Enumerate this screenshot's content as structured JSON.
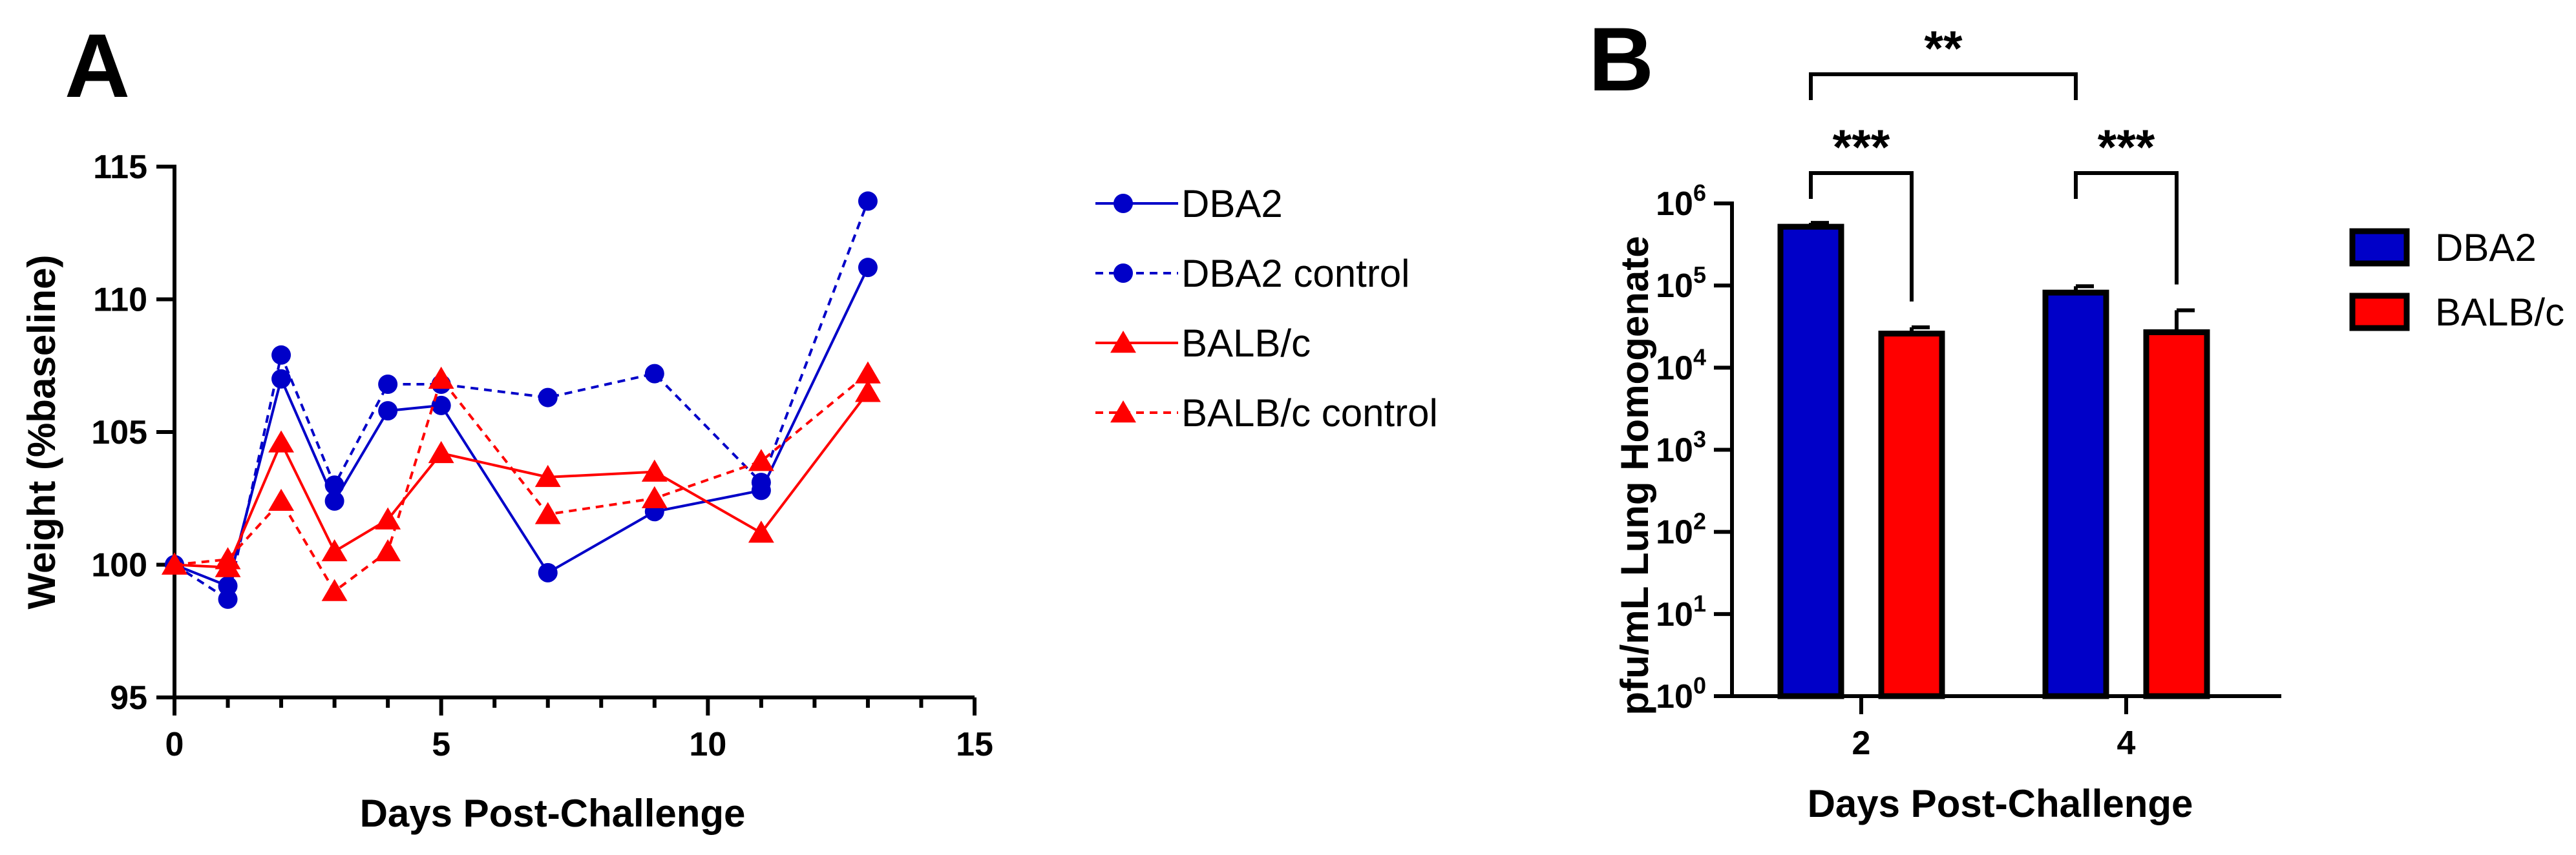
{
  "chart_data": [
    {
      "type": "line",
      "panel_label": "A",
      "xlabel": "Days Post-Challenge",
      "ylabel": "Weight (%baseline)",
      "xlim": [
        0,
        15
      ],
      "ylim": [
        95,
        115
      ],
      "xticks": [
        0,
        5,
        10,
        15
      ],
      "xminor": [
        1,
        2,
        3,
        4,
        6,
        7,
        8,
        9,
        11,
        12,
        13,
        14
      ],
      "yticks": [
        95,
        100,
        105,
        110,
        115
      ],
      "legend_position": "right",
      "series": [
        {
          "name": "DBA2",
          "color": "#0000C8",
          "marker": "circle",
          "dashed": false,
          "x": [
            0,
            1,
            2,
            3,
            4,
            5,
            7,
            9,
            11,
            13
          ],
          "y": [
            100,
            99.2,
            107.0,
            102.4,
            105.8,
            106.0,
            99.7,
            102.0,
            102.8,
            111.2
          ]
        },
        {
          "name": "DBA2 control",
          "color": "#0000C8",
          "marker": "circle",
          "dashed": true,
          "x": [
            0,
            1,
            2,
            3,
            4,
            5,
            7,
            9,
            11,
            13
          ],
          "y": [
            100,
            98.7,
            107.9,
            103.0,
            106.8,
            106.8,
            106.3,
            107.2,
            103.1,
            113.7
          ]
        },
        {
          "name": "BALB/c",
          "color": "#FF0000",
          "marker": "triangle",
          "dashed": false,
          "x": [
            0,
            1,
            2,
            3,
            4,
            5,
            7,
            9,
            11,
            13
          ],
          "y": [
            100,
            99.9,
            104.6,
            100.5,
            101.7,
            104.2,
            103.3,
            103.5,
            101.2,
            106.5
          ]
        },
        {
          "name": "BALB/c control",
          "color": "#FF0000",
          "marker": "triangle",
          "dashed": true,
          "x": [
            0,
            1,
            2,
            3,
            4,
            5,
            7,
            9,
            11,
            13
          ],
          "y": [
            100,
            100.2,
            102.4,
            99.0,
            100.5,
            107.0,
            101.9,
            102.5,
            103.9,
            107.2
          ]
        }
      ]
    },
    {
      "type": "bar",
      "panel_label": "B",
      "xlabel": "Days Post-Challenge",
      "ylabel": "pfu/mL Lung Homogenate",
      "yscale": "log",
      "ylim_exp": [
        0,
        6
      ],
      "ytick_labels": [
        {
          "base": "10",
          "exp": "0"
        },
        {
          "base": "10",
          "exp": "1"
        },
        {
          "base": "10",
          "exp": "2"
        },
        {
          "base": "10",
          "exp": "3"
        },
        {
          "base": "10",
          "exp": "4"
        },
        {
          "base": "10",
          "exp": "5"
        },
        {
          "base": "10",
          "exp": "6"
        }
      ],
      "categories": [
        "2",
        "4"
      ],
      "legend_position": "right",
      "series": [
        {
          "name": "DBA2",
          "color": "#0000C8",
          "values": [
            520000,
            82000
          ],
          "error_upper": [
            580000,
            98000
          ]
        },
        {
          "name": "BALB/c",
          "color": "#FF0000",
          "values": [
            26000,
            27000
          ],
          "error_upper": [
            31000,
            50000
          ]
        }
      ],
      "significance": [
        {
          "label": "***",
          "between": "Day 2 DBA2 vs BALB/c"
        },
        {
          "label": "***",
          "between": "Day 4 DBA2 vs BALB/c"
        },
        {
          "label": "**",
          "between": "DBA2 Day 2 vs Day 4"
        }
      ]
    }
  ]
}
